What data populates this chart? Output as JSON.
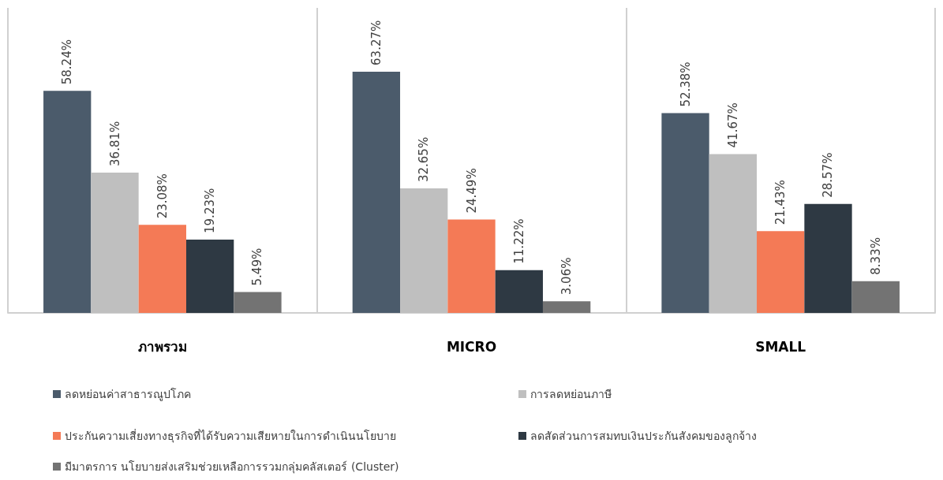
{
  "chart_data": {
    "type": "bar",
    "categories": [
      "ภาพรวม",
      "MICRO",
      "SMALL"
    ],
    "series": [
      {
        "name": "ลดหย่อนค่าสาธารณูปโภค",
        "color": "#4b5b6b",
        "values": [
          58.24,
          63.27,
          52.38
        ],
        "value_labels": [
          "58.24%",
          "63.27%",
          "52.38%"
        ]
      },
      {
        "name": "การลดหย่อนภาษี",
        "color": "#bfbfbf",
        "values": [
          36.81,
          32.65,
          41.67
        ],
        "value_labels": [
          "36.81%",
          "32.65%",
          "41.67%"
        ]
      },
      {
        "name": "ประกันความเสี่ยงทางธุรกิจที่ได้รับความเสียหายในการดำเนินนโยบาย",
        "color": "#f47a56",
        "values": [
          23.08,
          24.49,
          21.43
        ],
        "value_labels": [
          "23.08%",
          "24.49%",
          "21.43%"
        ]
      },
      {
        "name": "ลดสัดส่วนการสมทบเงินประกันสังคมของลูกจ้าง",
        "color": "#2e3943",
        "values": [
          19.23,
          11.22,
          28.57
        ],
        "value_labels": [
          "19.23%",
          "11.22%",
          "28.57%"
        ]
      },
      {
        "name": "มีมาตรการ นโยบายส่งเสริมช่วยเหลือการรวมกลุ่มคลัสเตอร์ (Cluster)",
        "color": "#737373",
        "values": [
          5.49,
          3.06,
          8.33
        ],
        "value_labels": [
          "5.49%",
          "3.06%",
          "8.33%"
        ]
      }
    ],
    "ylim": [
      0,
      80
    ],
    "grid": "x",
    "legend": "bottom",
    "tick_labels": "x"
  }
}
